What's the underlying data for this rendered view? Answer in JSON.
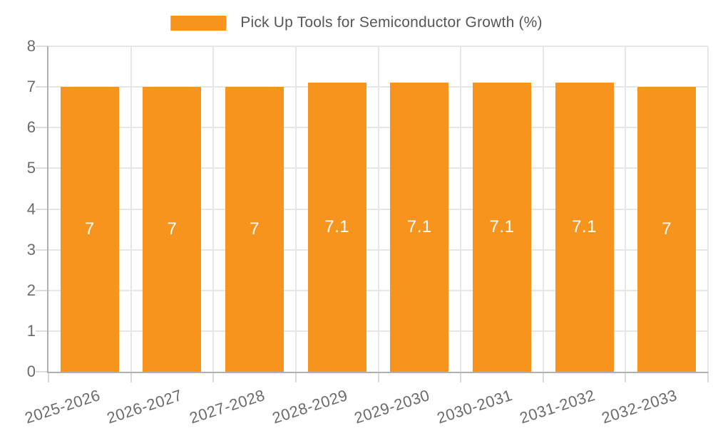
{
  "legend": {
    "label": "Pick Up Tools for Semiconductor Growth (%)"
  },
  "chart_data": {
    "type": "bar",
    "title": "Pick Up Tools for Semiconductor Growth (%)",
    "categories": [
      "2025-2026",
      "2026-2027",
      "2027-2028",
      "2028-2029",
      "2029-2030",
      "2030-2031",
      "2031-2032",
      "2032-2033"
    ],
    "values": [
      7,
      7,
      7,
      7.1,
      7.1,
      7.1,
      7.1,
      7
    ],
    "bar_labels": [
      "7",
      "7",
      "7",
      "7.1",
      "7.1",
      "7.1",
      "7.1",
      "7"
    ],
    "y_ticks": [
      0,
      1,
      2,
      3,
      4,
      5,
      6,
      7,
      8
    ],
    "ylim": [
      0,
      8
    ],
    "xlabel": "",
    "ylabel": "",
    "grid": true,
    "legend_position": "top-center",
    "bar_color": "#f7941e",
    "value_label_color": "#ffffff",
    "axis_color": "#b0b0b0",
    "gridline_color": "#e6e6e6",
    "tick_label_color": "#6b6b6b"
  }
}
